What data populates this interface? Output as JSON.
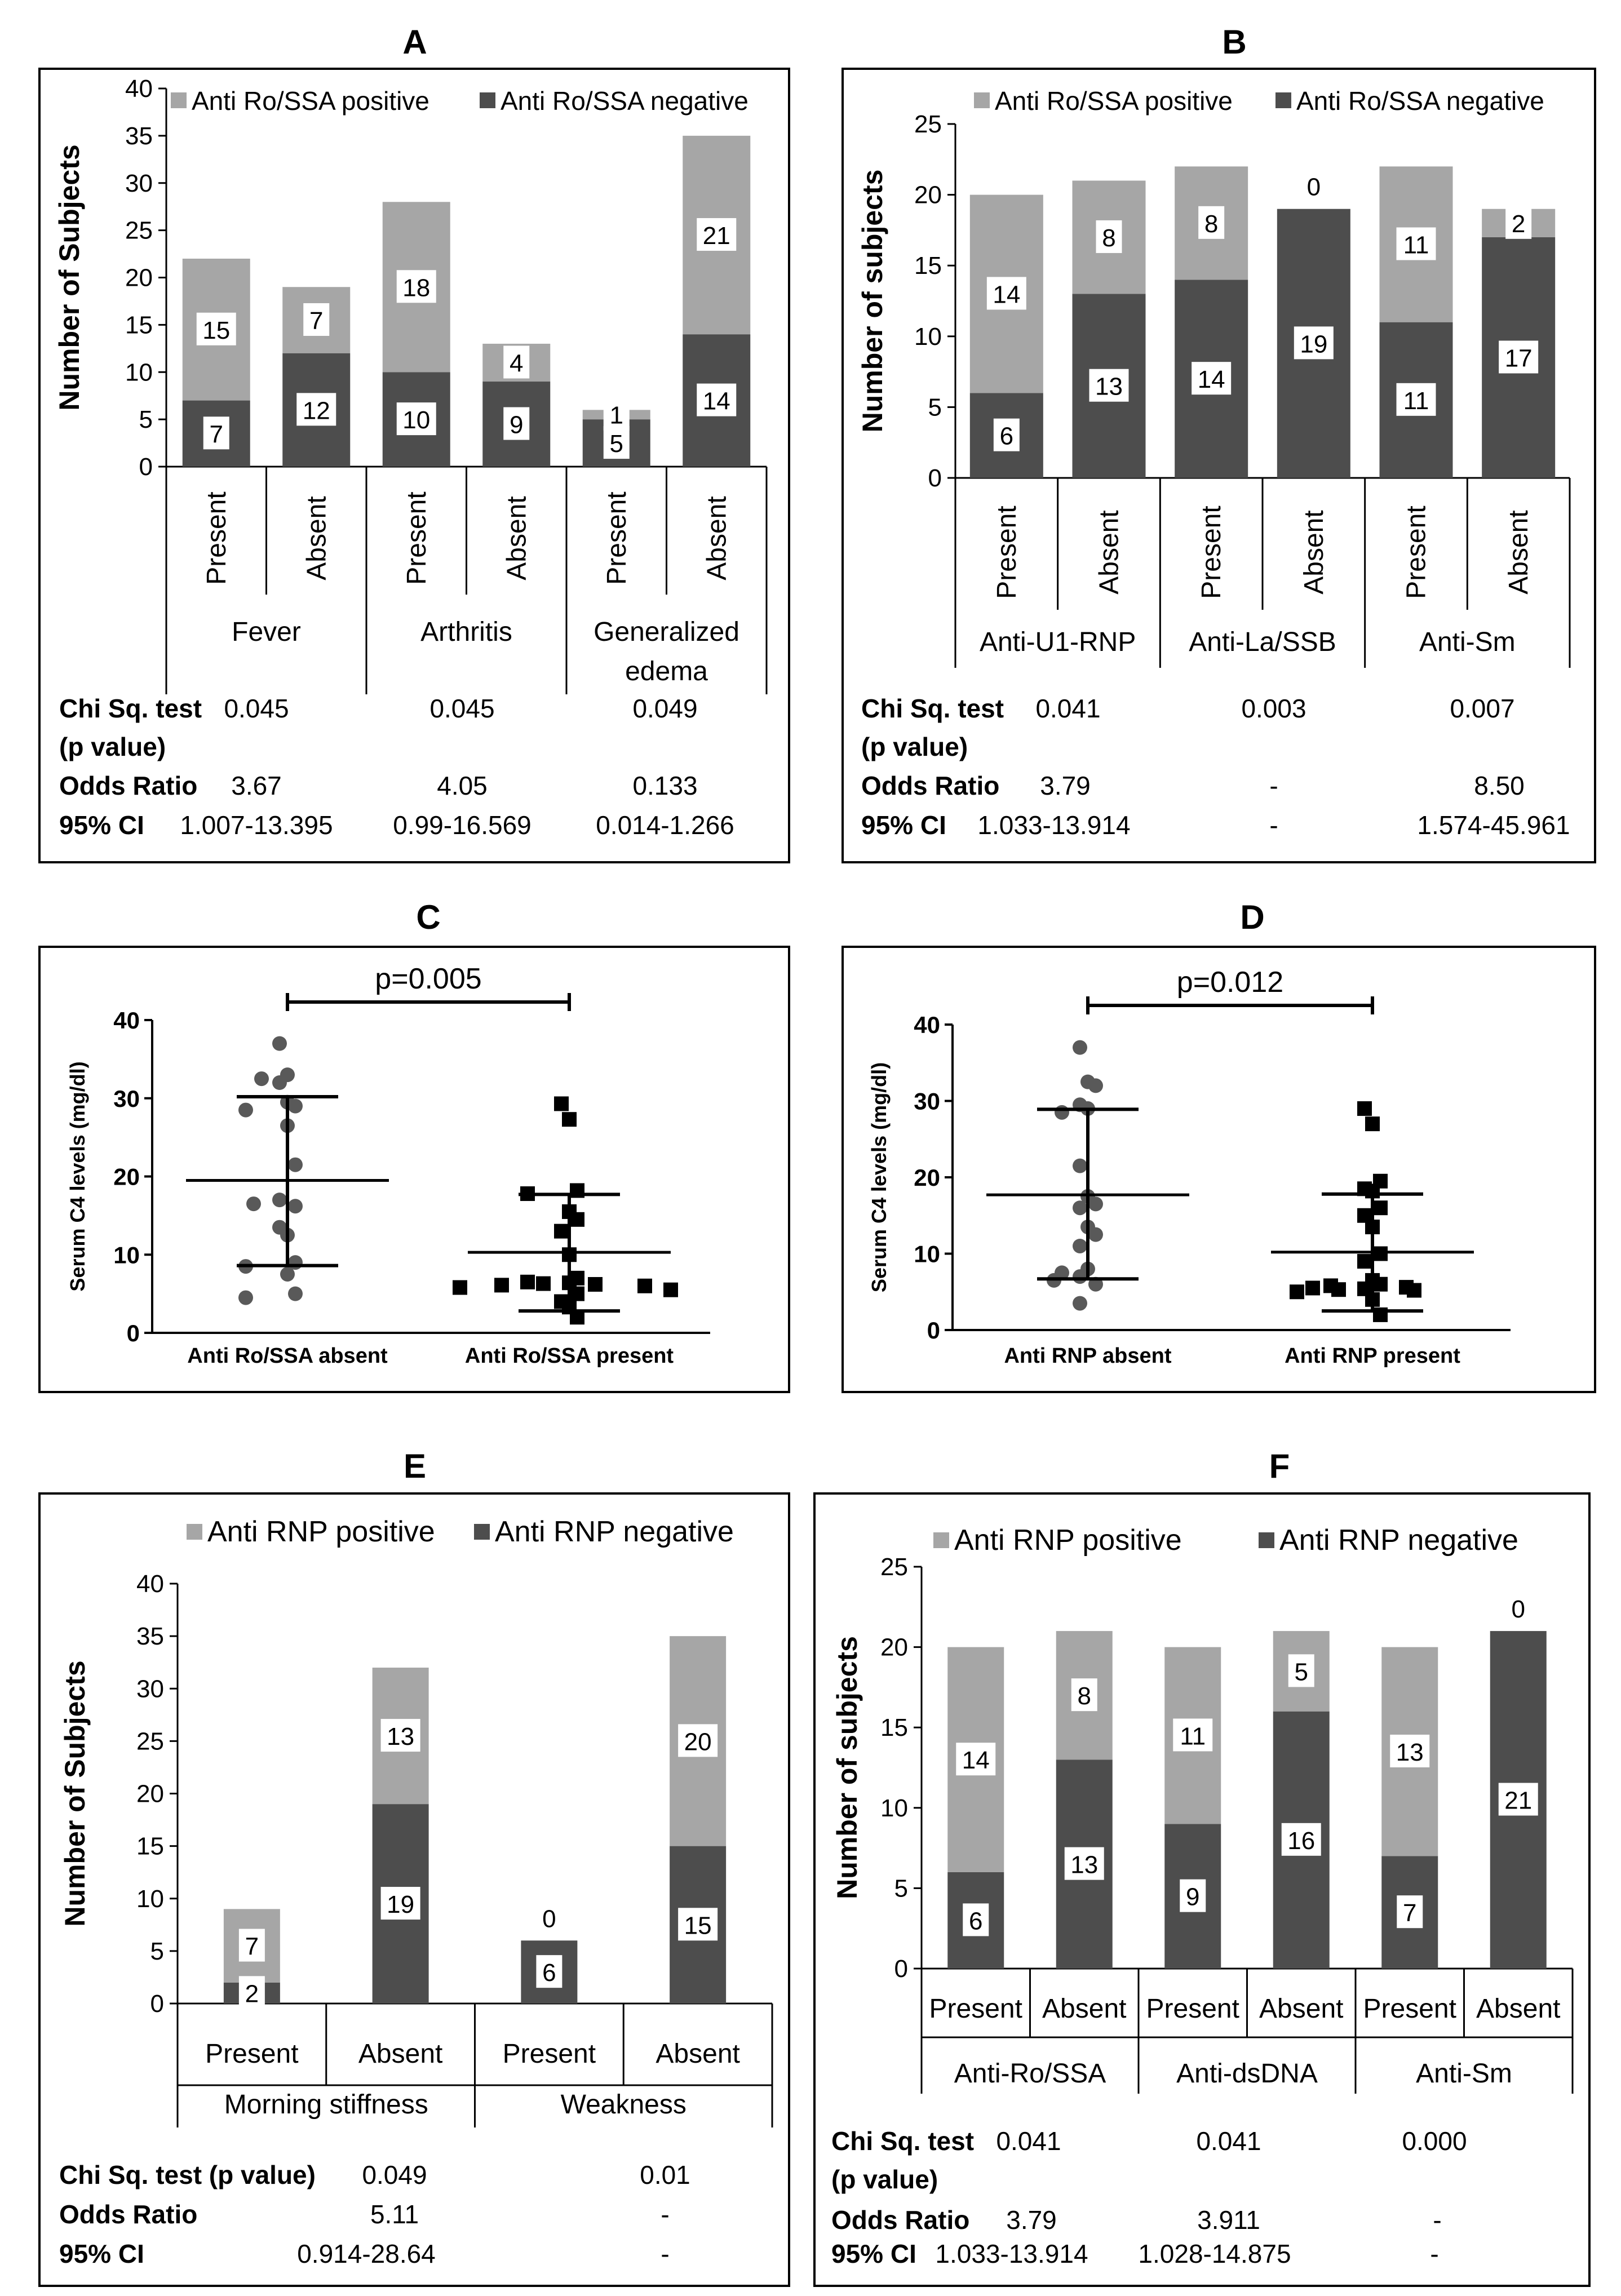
{
  "colors": {
    "positive": "#a6a6a6",
    "negative": "#4d4d4d",
    "border": "#000000",
    "dot": "#595959",
    "square": "#000000"
  },
  "chart_data": [
    {
      "panel": "A",
      "type": "bar",
      "stacked": true,
      "ylabel": "Number of Subjects",
      "ylim": [
        0,
        40
      ],
      "yticks": [
        "0",
        "5",
        "10",
        "15",
        "20",
        "25",
        "30",
        "35",
        "40"
      ],
      "legend": {
        "positive": "Anti Ro/SSA positive",
        "negative": "Anti Ro/SSA negative"
      },
      "categories": [
        "Present",
        "Absent",
        "Present",
        "Absent",
        "Present",
        "Absent"
      ],
      "groups": [
        "Fever",
        "Arthritis",
        "Generalized edema"
      ],
      "series": [
        {
          "name": "Anti Ro/SSA negative",
          "values": [
            7,
            12,
            10,
            9,
            5,
            14
          ]
        },
        {
          "name": "Anti Ro/SSA positive",
          "values": [
            15,
            7,
            18,
            4,
            1,
            21
          ]
        }
      ],
      "value_labels": {
        "negative": [
          "7",
          "12",
          "10",
          "9",
          "5",
          "14"
        ],
        "positive": [
          "15",
          "7",
          "18",
          "4",
          "1",
          "21"
        ]
      },
      "stats": {
        "chi_label": "Chi Sq. test",
        "chi_label2": "(p value)",
        "chi": [
          "0.045",
          "0.045",
          "0.049"
        ],
        "or_label": "Odds Ratio",
        "or": [
          "3.67",
          "4.05",
          "0.133"
        ],
        "ci_label": "95% CI",
        "ci": [
          "1.007-13.395",
          "0.99-16.569",
          "0.014-1.266"
        ]
      }
    },
    {
      "panel": "B",
      "type": "bar",
      "stacked": true,
      "ylabel": "Number of subjects",
      "ylim": [
        0,
        25
      ],
      "yticks": [
        "0",
        "5",
        "10",
        "15",
        "20",
        "25"
      ],
      "legend": {
        "positive": "Anti Ro/SSA positive",
        "negative": "Anti Ro/SSA negative"
      },
      "categories": [
        "Present",
        "Absent",
        "Present",
        "Absent",
        "Present",
        "Absent"
      ],
      "groups": [
        "Anti-U1-RNP",
        "Anti-La/SSB",
        "Anti-Sm"
      ],
      "series": [
        {
          "name": "Anti Ro/SSA negative",
          "values": [
            6,
            13,
            14,
            19,
            11,
            17
          ]
        },
        {
          "name": "Anti Ro/SSA positive",
          "values": [
            14,
            8,
            8,
            0,
            11,
            2
          ]
        }
      ],
      "value_labels": {
        "negative": [
          "6",
          "13",
          "14",
          "19",
          "11",
          "17"
        ],
        "positive": [
          "14",
          "8",
          "8",
          "0",
          "11",
          "2"
        ]
      },
      "stats": {
        "chi_label": "Chi Sq. test",
        "chi_label2": "(p value)",
        "chi": [
          "0.041",
          "0.003",
          "0.007"
        ],
        "or_label": "Odds Ratio",
        "or": [
          "3.79",
          "-",
          "8.50"
        ],
        "ci_label": "95% CI",
        "ci": [
          "1.033-13.914",
          "-",
          "1.574-45.961"
        ]
      }
    },
    {
      "panel": "C",
      "type": "scatter",
      "ylabel": "Serum C4 levels (mg/dl)",
      "ylim": [
        0,
        40
      ],
      "yticks": [
        "0",
        "10",
        "20",
        "30",
        "40"
      ],
      "categories": [
        "Anti Ro/SSA absent",
        "Anti Ro/SSA present"
      ],
      "pvalue": "p=0.005",
      "groups_data": [
        {
          "name": "Anti Ro/SSA absent",
          "marker": "circle",
          "mean": 19.5,
          "sd_low": 8.6,
          "sd_high": 30.2,
          "values": [
            37,
            33,
            32.5,
            32,
            29.5,
            29,
            28.5,
            26.5,
            21.5,
            17,
            16.5,
            16.2,
            13.5,
            12.5,
            9,
            8.5,
            7.5,
            5,
            4.5
          ]
        },
        {
          "name": "Anti Ro/SSA present",
          "marker": "square",
          "mean": 10.3,
          "sd_low": 2.8,
          "sd_high": 17.7,
          "values": [
            29.3,
            27.3,
            18.2,
            17.8,
            15.5,
            14.5,
            13,
            10,
            7,
            6.5,
            6.4,
            6.3,
            6.2,
            6.1,
            6,
            5.8,
            5.5,
            5,
            4,
            3.3,
            2
          ]
        }
      ]
    },
    {
      "panel": "D",
      "type": "scatter",
      "ylabel": "Serum C4 levels (mg/dl)",
      "ylim": [
        0,
        40
      ],
      "yticks": [
        "0",
        "10",
        "20",
        "30",
        "40"
      ],
      "categories": [
        "Anti RNP absent",
        "Anti RNP present"
      ],
      "pvalue": "p=0.012",
      "groups_data": [
        {
          "name": "Anti RNP absent",
          "marker": "circle",
          "mean": 17.7,
          "sd_low": 6.7,
          "sd_high": 28.9,
          "values": [
            37,
            32.5,
            32,
            29.5,
            29,
            28.5,
            21.5,
            17.5,
            16.5,
            16,
            13.5,
            12.5,
            11,
            8,
            7.5,
            7,
            6.5,
            6,
            3.5
          ]
        },
        {
          "name": "Anti RNP present",
          "marker": "square",
          "mean": 10.2,
          "sd_low": 2.5,
          "sd_high": 17.8,
          "values": [
            29,
            27,
            19.5,
            18.5,
            18.2,
            16,
            15,
            13.5,
            10,
            9,
            6.5,
            6,
            5.8,
            5.6,
            5.5,
            5.4,
            5.3,
            5.2,
            5,
            4,
            2
          ]
        }
      ]
    },
    {
      "panel": "E",
      "type": "bar",
      "stacked": true,
      "ylabel": "Number of Subjects",
      "ylim": [
        0,
        40
      ],
      "yticks": [
        "0",
        "5",
        "10",
        "15",
        "20",
        "25",
        "30",
        "35",
        "40"
      ],
      "legend": {
        "positive": "Anti RNP positive",
        "negative": "Anti RNP negative"
      },
      "categories": [
        "Present",
        "Absent",
        "Present",
        "Absent"
      ],
      "groups": [
        "Morning stiffness",
        "Weakness"
      ],
      "series": [
        {
          "name": "Anti RNP negative",
          "values": [
            2,
            19,
            6,
            15
          ]
        },
        {
          "name": "Anti RNP positive",
          "values": [
            7,
            13,
            0,
            20
          ]
        }
      ],
      "value_labels": {
        "negative": [
          "2",
          "19",
          "6",
          "15"
        ],
        "positive": [
          "7",
          "13",
          "0",
          "20"
        ]
      },
      "stats": {
        "chi_label": "Chi Sq. test (p value)",
        "chi": [
          "0.049",
          "0.01"
        ],
        "or_label": "Odds Ratio",
        "or": [
          "5.11",
          "-"
        ],
        "ci_label": "95% CI",
        "ci": [
          "0.914-28.64",
          "-"
        ]
      }
    },
    {
      "panel": "F",
      "type": "bar",
      "stacked": true,
      "ylabel": "Number of subjects",
      "ylim": [
        0,
        25
      ],
      "yticks": [
        "0",
        "5",
        "10",
        "15",
        "20",
        "25"
      ],
      "legend": {
        "positive": "Anti RNP positive",
        "negative": "Anti RNP negative"
      },
      "categories": [
        "Present",
        "Absent",
        "Present",
        "Absent",
        "Present",
        "Absent"
      ],
      "groups": [
        "Anti-Ro/SSA",
        "Anti-dsDNA",
        "Anti-Sm"
      ],
      "series": [
        {
          "name": "Anti RNP negative",
          "values": [
            6,
            13,
            9,
            16,
            7,
            21
          ]
        },
        {
          "name": "Anti RNP positive",
          "values": [
            14,
            8,
            11,
            5,
            13,
            0
          ]
        }
      ],
      "value_labels": {
        "negative": [
          "6",
          "13",
          "9",
          "16",
          "7",
          "21"
        ],
        "positive": [
          "14",
          "8",
          "11",
          "5",
          "13",
          "0"
        ]
      },
      "stats": {
        "chi_label": "Chi Sq. test",
        "chi_label2": "(p value)",
        "chi": [
          "0.041",
          "0.041",
          "0.000"
        ],
        "or_label": "Odds Ratio",
        "or": [
          "3.79",
          "3.911",
          "-"
        ],
        "ci_label": "95% CI",
        "ci": [
          "1.033-13.914",
          "1.028-14.875",
          "-"
        ]
      }
    }
  ]
}
